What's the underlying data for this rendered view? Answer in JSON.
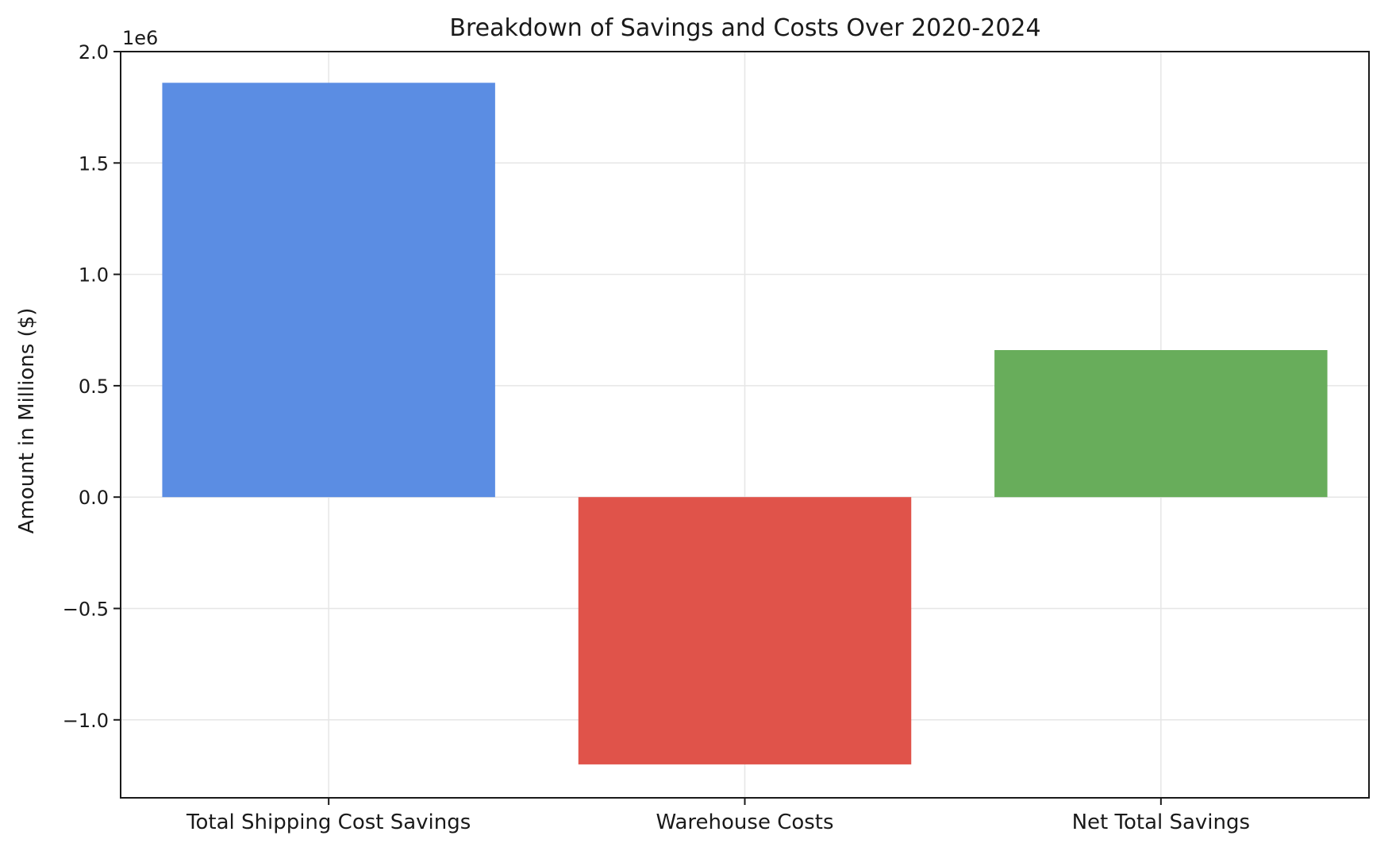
{
  "chart_data": {
    "type": "bar",
    "title": "Breakdown of Savings and Costs Over 2020-2024",
    "xlabel": "",
    "ylabel": "Amount in Millions ($)",
    "offset_label": "1e6",
    "categories": [
      "Total Shipping Cost Savings",
      "Warehouse Costs",
      "Net Total Savings"
    ],
    "values": [
      1860000,
      -1200000,
      660000
    ],
    "colors": [
      "#5b8de3",
      "#e0534a",
      "#68ad5b"
    ],
    "ylim": [
      -1350000,
      2000000
    ],
    "yticks": [
      -1000000,
      -500000,
      0,
      500000,
      1000000,
      1500000,
      2000000
    ],
    "ytick_labels": [
      "−1.0",
      "−0.5",
      "0.0",
      "0.5",
      "1.0",
      "1.5",
      "2.0"
    ],
    "grid": true
  }
}
